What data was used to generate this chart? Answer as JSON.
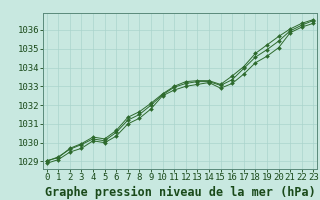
{
  "title": "Graphe pression niveau de la mer (hPa)",
  "bg_color": "#c8e8e0",
  "grid_color": "#aad4cc",
  "line_color": "#2d6a2d",
  "marker_color": "#2d6a2d",
  "x_ticks": [
    0,
    1,
    2,
    3,
    4,
    5,
    6,
    7,
    8,
    9,
    10,
    11,
    12,
    13,
    14,
    15,
    16,
    17,
    18,
    19,
    20,
    21,
    22,
    23
  ],
  "y_ticks": [
    1029,
    1030,
    1031,
    1032,
    1033,
    1034,
    1035,
    1036
  ],
  "ylim": [
    1028.6,
    1036.9
  ],
  "xlim": [
    -0.3,
    23.3
  ],
  "series1": [
    1028.9,
    1029.1,
    1029.5,
    1029.7,
    1030.1,
    1030.0,
    1030.35,
    1031.0,
    1031.3,
    1031.8,
    1032.5,
    1032.8,
    1033.0,
    1033.1,
    1033.2,
    1032.9,
    1033.15,
    1033.65,
    1034.25,
    1034.6,
    1035.05,
    1035.85,
    1036.15,
    1036.35
  ],
  "series2": [
    1029.0,
    1029.25,
    1029.65,
    1029.9,
    1030.2,
    1030.1,
    1030.55,
    1031.2,
    1031.5,
    1032.0,
    1032.55,
    1032.95,
    1033.15,
    1033.25,
    1033.25,
    1033.05,
    1033.35,
    1033.95,
    1034.55,
    1034.95,
    1035.4,
    1035.95,
    1036.25,
    1036.5
  ],
  "series3": [
    1029.05,
    1029.2,
    1029.7,
    1029.95,
    1030.3,
    1030.2,
    1030.65,
    1031.35,
    1031.65,
    1032.1,
    1032.6,
    1033.0,
    1033.25,
    1033.3,
    1033.3,
    1033.1,
    1033.55,
    1034.05,
    1034.75,
    1035.2,
    1035.65,
    1036.05,
    1036.35,
    1036.55
  ],
  "title_fontsize": 8.5,
  "tick_fontsize": 6.5,
  "title_color": "#1a4a1a",
  "tick_color": "#1a4a1a"
}
